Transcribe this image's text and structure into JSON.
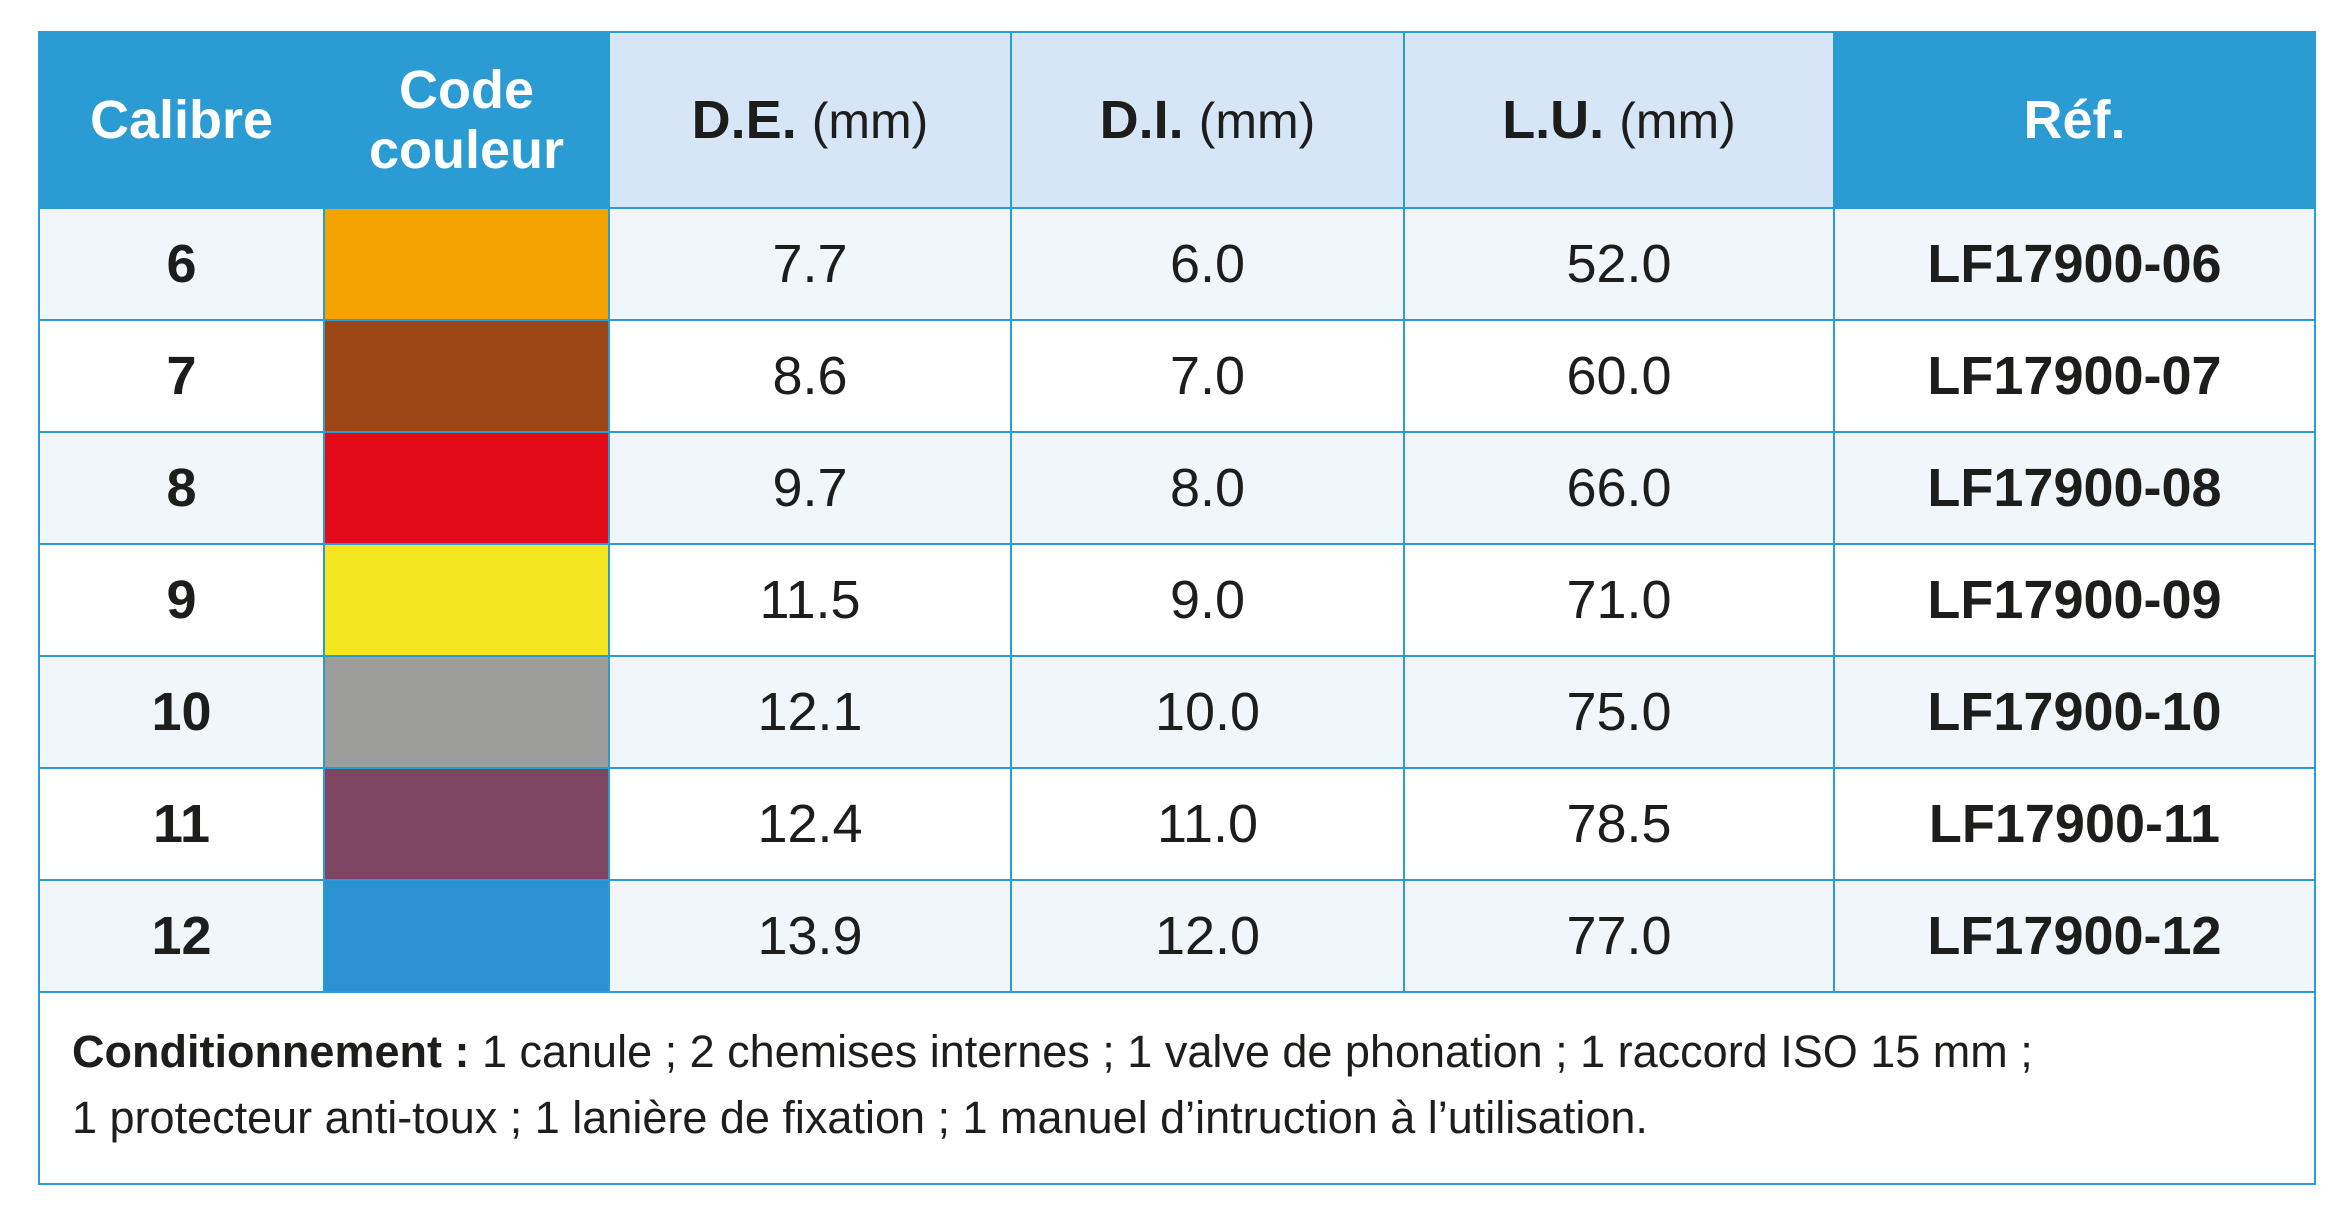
{
  "headers": {
    "calibre": "Calibre",
    "code_couleur_line1": "Code",
    "code_couleur_line2": "couleur",
    "de": "D.E.",
    "di": "D.I.",
    "lu": "L.U.",
    "unit": "(mm)",
    "ref": "Réf."
  },
  "colors": {
    "header_blue": "#2b9bd3",
    "header_light": "#d6e6f6"
  },
  "rows": [
    {
      "calibre": "6",
      "color": "#f4a300",
      "de": "7.7",
      "di": "6.0",
      "lu": "52.0",
      "ref": "LF17900-06"
    },
    {
      "calibre": "7",
      "color": "#9b4614",
      "de": "8.6",
      "di": "7.0",
      "lu": "60.0",
      "ref": "LF17900-07"
    },
    {
      "calibre": "8",
      "color": "#e30b17",
      "de": "9.7",
      "di": "8.0",
      "lu": "66.0",
      "ref": "LF17900-08"
    },
    {
      "calibre": "9",
      "color": "#f5e622",
      "de": "11.5",
      "di": "9.0",
      "lu": "71.0",
      "ref": "LF17900-09"
    },
    {
      "calibre": "10",
      "color": "#9d9d9c",
      "de": "12.1",
      "di": "10.0",
      "lu": "75.0",
      "ref": "LF17900-10"
    },
    {
      "calibre": "11",
      "color": "#7d4561",
      "de": "12.4",
      "di": "11.0",
      "lu": "78.5",
      "ref": "LF17900-11"
    },
    {
      "calibre": "12",
      "color": "#2b91d0",
      "de": "13.9",
      "di": "12.0",
      "lu": "77.0",
      "ref": "LF17900-12"
    }
  ],
  "footer": {
    "label": "Conditionnement :",
    "line1": " 1 canule ; 2 chemises internes ; 1 valve de phonation ; 1 raccord ISO 15 mm ;",
    "line2": "1 protecteur anti-toux ;  1 lanière de fixation ; 1 manuel d’intruction à l’utilisation."
  }
}
